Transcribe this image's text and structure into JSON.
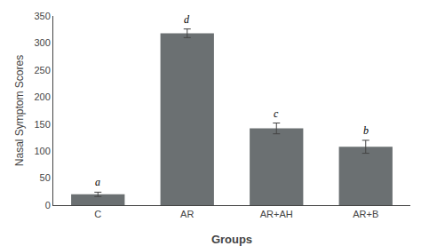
{
  "chart_data": {
    "type": "bar",
    "categories": [
      "C",
      "AR",
      "AR+AH",
      "AR+B"
    ],
    "values": [
      20,
      318,
      142,
      108
    ],
    "errors": [
      4,
      8,
      10,
      12
    ],
    "color": "#6b7072",
    "annotations": [
      {
        "x": "C",
        "text": "a"
      },
      {
        "x": "AR",
        "text": "d"
      },
      {
        "x": "AR+AH",
        "text": "c"
      },
      {
        "x": "AR+B",
        "text": "b"
      }
    ],
    "xlabel": "Groups",
    "ylabel": "Nasal Symptom Scores",
    "ylim": [
      0,
      350
    ],
    "yticks": [
      0,
      50,
      100,
      150,
      200,
      250,
      300,
      350
    ],
    "grid": false
  }
}
